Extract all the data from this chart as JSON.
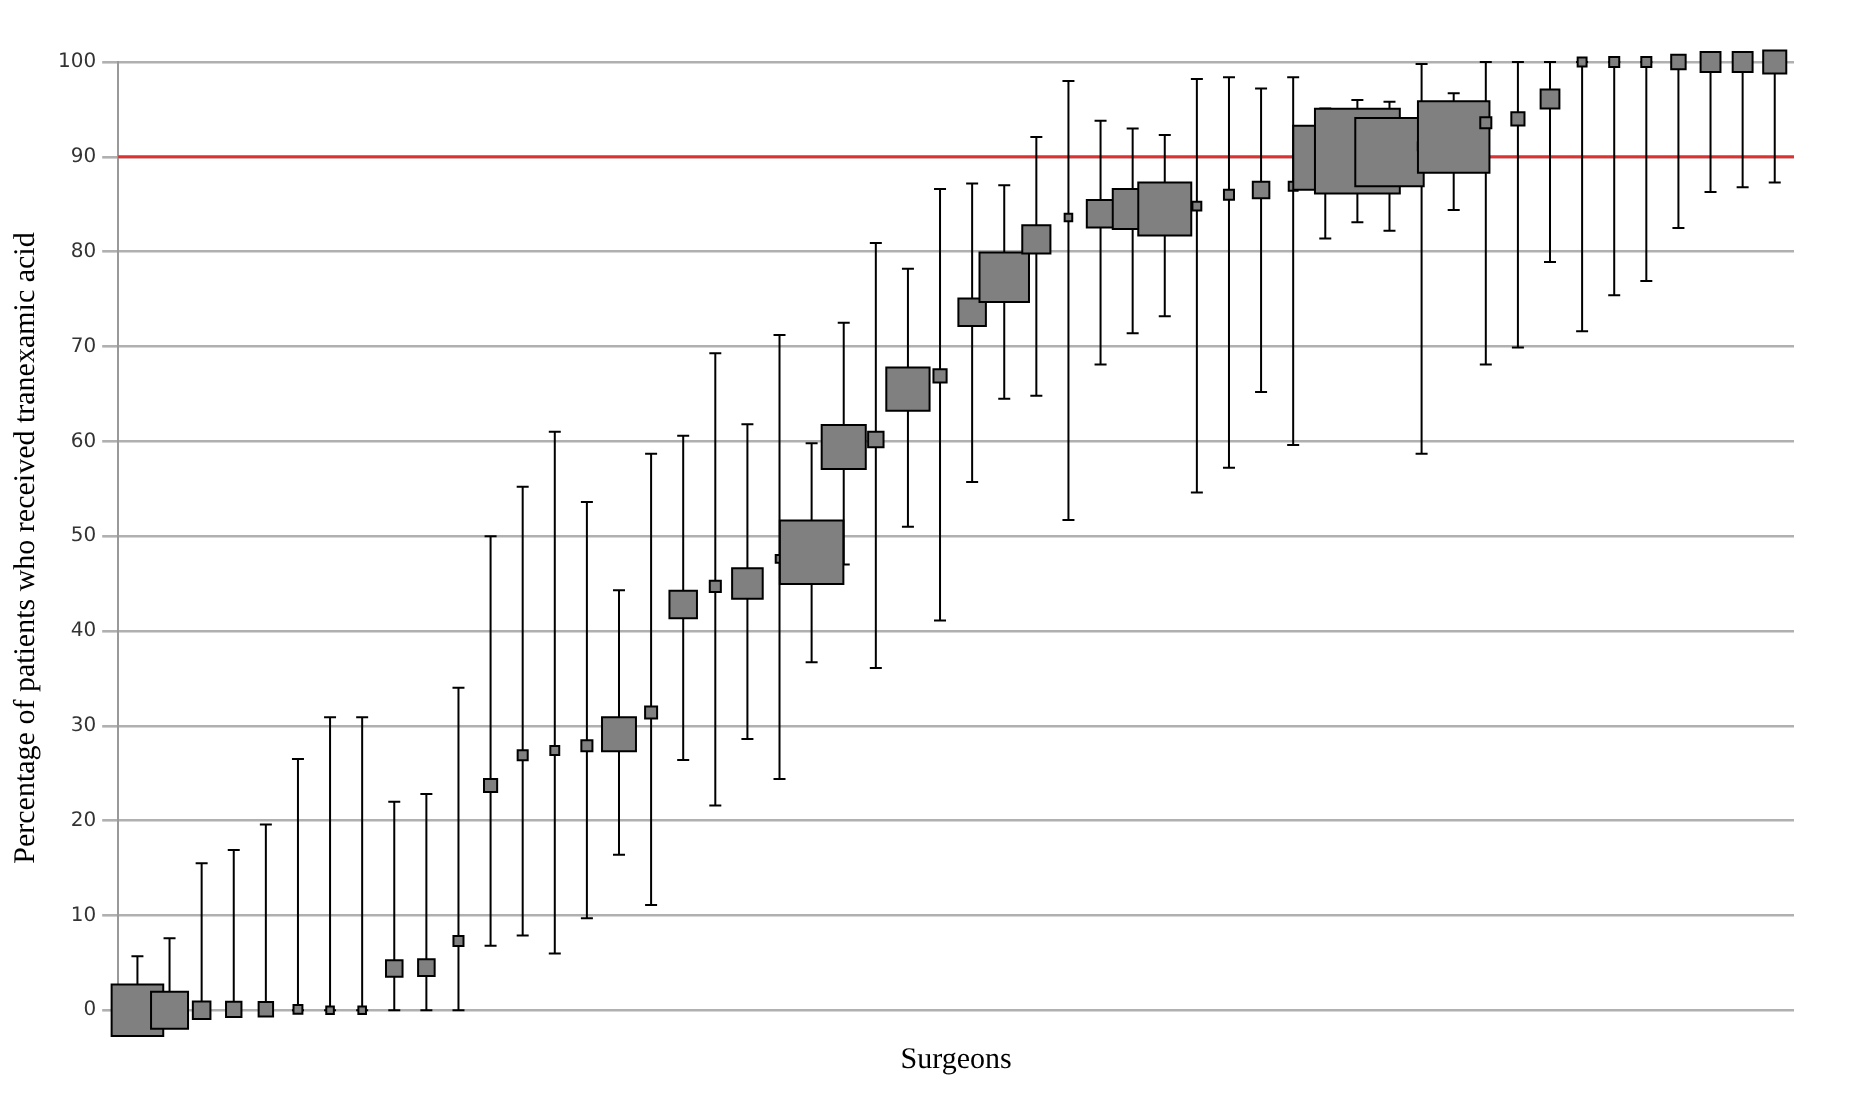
{
  "chart_data": {
    "type": "bubble",
    "xlabel": "Surgeons",
    "ylabel": "Percentage of patients who received tranexamic acid",
    "categories": [
      null,
      null,
      null,
      null,
      null,
      null,
      null,
      null,
      null,
      null,
      null,
      null,
      null,
      null,
      null,
      null,
      null,
      null,
      null,
      null,
      null,
      null,
      null,
      null,
      null,
      null,
      null,
      null,
      null,
      null,
      null,
      null,
      null,
      null,
      null,
      null,
      null,
      null,
      null,
      null,
      null,
      null,
      null,
      null,
      null,
      null,
      null,
      null,
      null,
      null,
      null,
      null
    ],
    "values": [
      0,
      0,
      0,
      0.1,
      0.1,
      0.1,
      0,
      0,
      4.4,
      4.5,
      7.3,
      23.7,
      26.9,
      27.4,
      27.9,
      29.1,
      31.4,
      42.8,
      44.7,
      45,
      47.6,
      48.3,
      59.4,
      60.2,
      65.5,
      66.9,
      73.6,
      77.3,
      81.3,
      83.6,
      84,
      84.5,
      84.5,
      84.8,
      86,
      86.5,
      86.9,
      89.9,
      90.6,
      90.5,
      91.1,
      92.1,
      93.6,
      94,
      96.1,
      100,
      100,
      100,
      100,
      100,
      100,
      100
    ],
    "sizes": [
      0.37,
      0.19,
      0.043,
      0.033,
      0.029,
      0.011,
      0.008,
      0.008,
      0.038,
      0.038,
      0.014,
      0.024,
      0.014,
      0.011,
      0.017,
      0.16,
      0.02,
      0.105,
      0.017,
      0.13,
      0.008,
      0.56,
      0.27,
      0.033,
      0.26,
      0.024,
      0.105,
      0.34,
      0.11,
      0.008,
      0.105,
      0.22,
      0.39,
      0.011,
      0.014,
      0.038,
      0.011,
      0.57,
      1,
      0.65,
      0.008,
      0.71,
      0.017,
      0.024,
      0.049,
      0.011,
      0.014,
      0.014,
      0.029,
      0.055,
      0.055,
      0.074
    ],
    "errors": [
      [
        0,
        5.7
      ],
      [
        0,
        7.6
      ],
      [
        0,
        15.5
      ],
      [
        0,
        16.9
      ],
      [
        0,
        19.6
      ],
      [
        0,
        26.5
      ],
      [
        0,
        30.9
      ],
      [
        0,
        30.9
      ],
      [
        0,
        22
      ],
      [
        0,
        22.8
      ],
      [
        0,
        34
      ],
      [
        6.8,
        50
      ],
      [
        7.9,
        55.2
      ],
      [
        6,
        61
      ],
      [
        9.7,
        53.6
      ],
      [
        16.4,
        44.3
      ],
      [
        11.1,
        58.7
      ],
      [
        26.4,
        60.6
      ],
      [
        21.6,
        69.3
      ],
      [
        28.6,
        61.8
      ],
      [
        24.4,
        71.2
      ],
      [
        36.7,
        59.8
      ],
      [
        47,
        72.5
      ],
      [
        36.1,
        80.9
      ],
      [
        51,
        78.2
      ],
      [
        41.1,
        86.6
      ],
      [
        55.7,
        87.2
      ],
      [
        64.5,
        87
      ],
      [
        64.8,
        92.1
      ],
      [
        51.7,
        98
      ],
      [
        68.1,
        93.8
      ],
      [
        71.4,
        93
      ],
      [
        73.2,
        92.3
      ],
      [
        54.6,
        98.2
      ],
      [
        57.2,
        98.4
      ],
      [
        65.2,
        97.2
      ],
      [
        59.6,
        98.4
      ],
      [
        81.4,
        95.1
      ],
      [
        83.1,
        96
      ],
      [
        82.2,
        95.8
      ],
      [
        58.7,
        99.8
      ],
      [
        84.4,
        96.7
      ],
      [
        68.1,
        100
      ],
      [
        69.9,
        100
      ],
      [
        78.9,
        100
      ],
      [
        71.6,
        100
      ],
      [
        75.4,
        100
      ],
      [
        76.9,
        100
      ],
      [
        82.5,
        100
      ],
      [
        86.3,
        100
      ],
      [
        86.8,
        100
      ],
      [
        87.3,
        100
      ]
    ],
    "color": "#808080",
    "marker": "square",
    "ylim": [
      -2.5,
      100
    ],
    "yticks": [
      0,
      10,
      20,
      30,
      40,
      50,
      60,
      70,
      80,
      90,
      100
    ],
    "grid": "y",
    "tick_labels": "y",
    "legend": false,
    "ref_lines": [
      {
        "axis": "y",
        "value": 90,
        "color": "#e03030"
      }
    ]
  }
}
